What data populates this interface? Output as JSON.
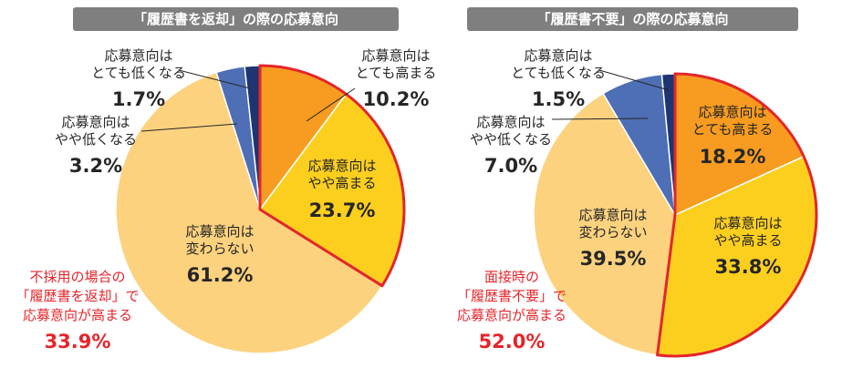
{
  "chart_data": [
    {
      "type": "pie",
      "title": "「履歴書を返却」の際の応募意向",
      "slices": [
        {
          "label": "応募意向は\nとても高まる",
          "value": 10.2,
          "value_label": "10.2%",
          "color": "#f79c20"
        },
        {
          "label": "応募意向は\nやや高まる",
          "value": 23.7,
          "value_label": "23.7%",
          "color": "#fccf1f"
        },
        {
          "label": "応募意向は\n変わらない",
          "value": 61.2,
          "value_label": "61.2%",
          "color": "#fcd27e"
        },
        {
          "label": "応募意向は\nやや低くなる",
          "value": 3.2,
          "value_label": "3.2%",
          "color": "#4e6fb6"
        },
        {
          "label": "応募意向は\nとても低くなる",
          "value": 1.7,
          "value_label": "1.7%",
          "color": "#1f3571"
        }
      ],
      "annotation": {
        "lines": [
          "不採用の場合の",
          "「履歴書を返却」で",
          "応募意向が高まる"
        ],
        "value": "33.9%"
      }
    },
    {
      "type": "pie",
      "title": "「履歴書不要」の際の応募意向",
      "slices": [
        {
          "label": "応募意向は\nとても高まる",
          "value": 18.2,
          "value_label": "18.2%",
          "color": "#f79c20"
        },
        {
          "label": "応募意向は\nやや高まる",
          "value": 33.8,
          "value_label": "33.8%",
          "color": "#fccf1f"
        },
        {
          "label": "応募意向は\n変わらない",
          "value": 39.5,
          "value_label": "39.5%",
          "color": "#fcd27e"
        },
        {
          "label": "応募意向は\nやや低くなる",
          "value": 7.0,
          "value_label": "7.0%",
          "color": "#4e6fb6"
        },
        {
          "label": "応募意向は\nとても低くなる",
          "value": 1.5,
          "value_label": "1.5%",
          "color": "#1f3571"
        }
      ],
      "annotation": {
        "lines": [
          "面接時の",
          "「履歴書不要」で",
          "応募意向が高まる"
        ],
        "value": "52.0%"
      }
    }
  ],
  "colors": {
    "banner": "#7f7f7f",
    "highlight": "#e4252b",
    "text": "#262626"
  }
}
